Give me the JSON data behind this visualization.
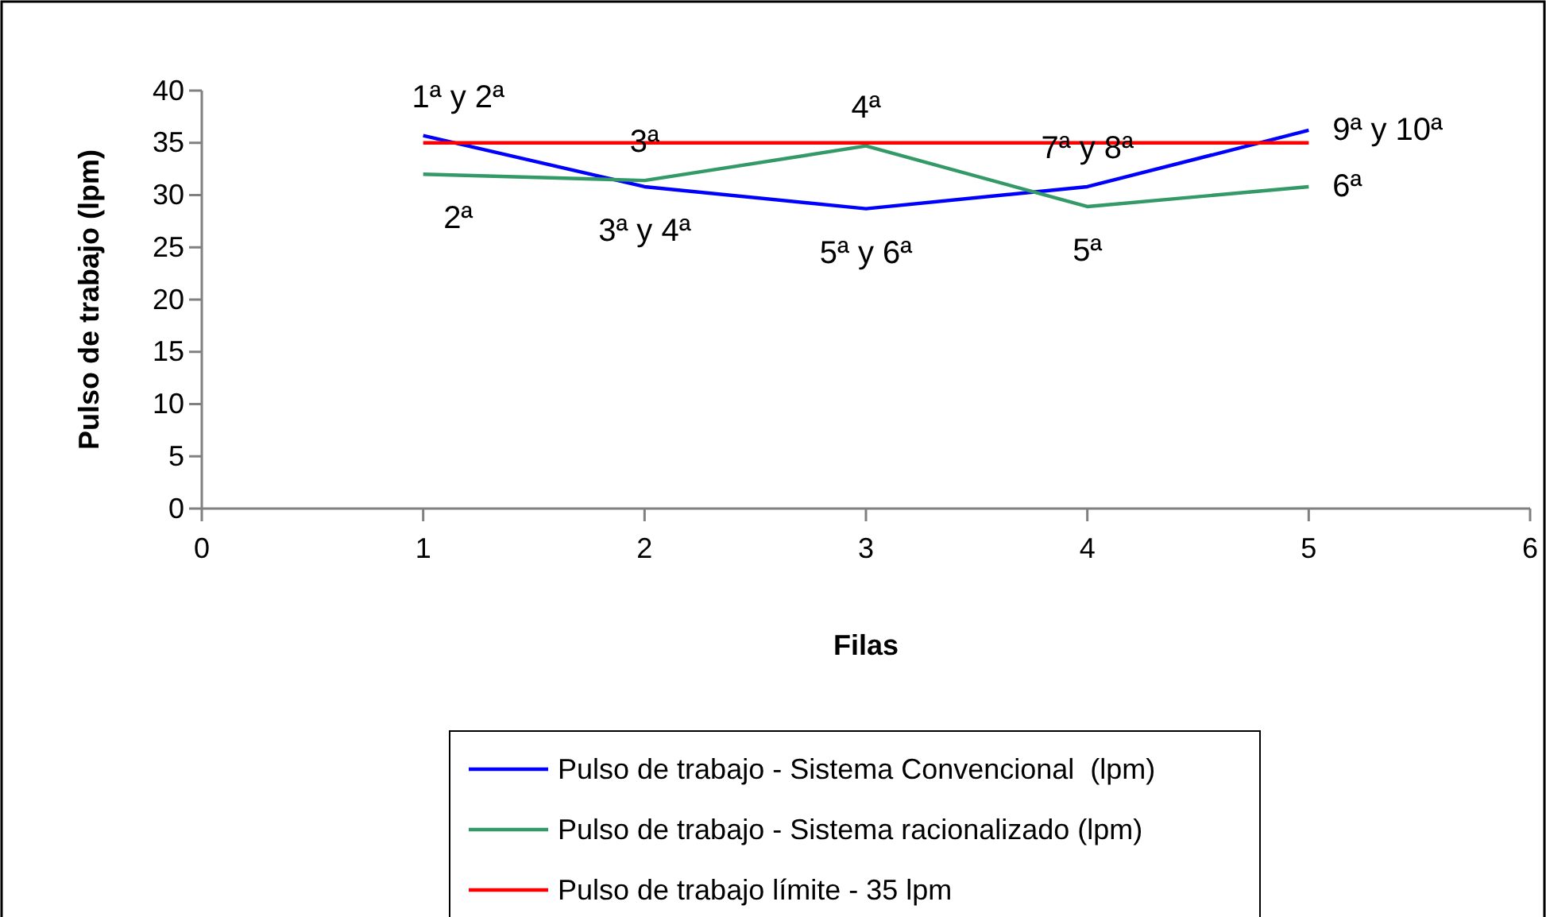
{
  "chart_data": {
    "type": "line",
    "xlabel": "Filas",
    "ylabel": "Pulso de trabajo (lpm)",
    "x": [
      1,
      2,
      3,
      4,
      5
    ],
    "series": [
      {
        "name": "Pulso de trabajo - Sistema Convencional  (lpm)",
        "color": "#0000ff",
        "values": [
          35.7,
          30.8,
          28.7,
          30.8,
          36.2
        ]
      },
      {
        "name": "Pulso de trabajo - Sistema racionalizado (lpm)",
        "color": "#339966",
        "values": [
          32.0,
          31.4,
          34.7,
          28.9,
          30.8
        ]
      },
      {
        "name": "Pulso de trabajo límite - 35 lpm",
        "color": "#ff0000",
        "values": [
          35,
          35,
          35,
          35,
          35
        ]
      }
    ],
    "xlim": [
      0,
      6
    ],
    "xticks": [
      0,
      1,
      2,
      3,
      4,
      5,
      6
    ],
    "ylim": [
      0,
      40
    ],
    "yticks": [
      0,
      5,
      10,
      15,
      20,
      25,
      30,
      35,
      40
    ],
    "grid": false,
    "legend": "bottom",
    "marker": "none",
    "line_style": "solid",
    "annotations": [
      {
        "text": "1ª y 2ª",
        "x": 1,
        "y": 35.7
      },
      {
        "text": "2ª",
        "x": 1,
        "y": 32.0
      },
      {
        "text": "3ª",
        "x": 2,
        "y": 31.4
      },
      {
        "text": "3ª y 4ª",
        "x": 2,
        "y": 30.8
      },
      {
        "text": "4ª",
        "x": 3,
        "y": 34.7
      },
      {
        "text": "5ª y 6ª",
        "x": 3,
        "y": 28.7
      },
      {
        "text": "7ª y 8ª",
        "x": 4,
        "y": 30.8
      },
      {
        "text": "5ª",
        "x": 4,
        "y": 28.9
      },
      {
        "text": "9ª y 10ª",
        "x": 5,
        "y": 36.2
      },
      {
        "text": "6ª",
        "x": 5,
        "y": 30.8
      }
    ]
  }
}
